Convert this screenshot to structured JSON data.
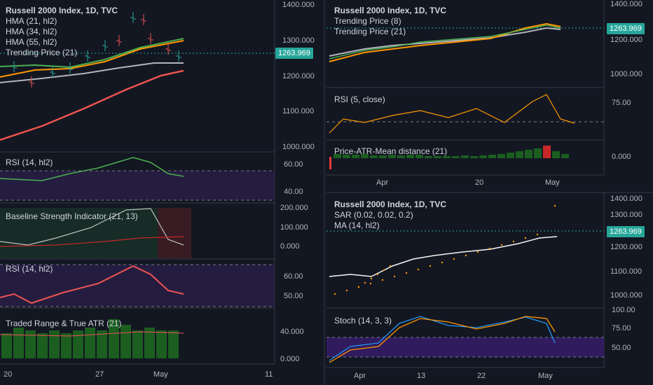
{
  "colors": {
    "bg": "#131722",
    "grid": "#2a2e39",
    "up": "#26a69a",
    "down": "#ef5350",
    "accent": "#26a69a",
    "purple": "#2a1f49"
  },
  "left": {
    "main": {
      "title": "Russell 2000 Index, 1D, TVC",
      "legend": [
        "HMA (21, hl2)",
        "HMA (34, hl2)",
        "HMA (55, hl2)",
        "Trending Price (21)"
      ],
      "ticks": [
        "1400.000",
        "1300.000",
        "1200.000",
        "1100.000",
        "1000.000"
      ],
      "last_price": "1263.969"
    },
    "rsi1": {
      "label": "RSI (14, hl2)",
      "ticks": [
        "60.00",
        "40.00"
      ]
    },
    "baseline": {
      "label": "Baseline Strength Indicator (21, 13)",
      "ticks": [
        "200.000",
        "100.000",
        "0.000"
      ]
    },
    "rsi2": {
      "label": "RSI (14, hl2)",
      "ticks": [
        "60.00",
        "50.00"
      ]
    },
    "atr": {
      "label": "Traded Range & True ATR (21)",
      "ticks": [
        "40.000",
        "0.000"
      ]
    },
    "xaxis": [
      "20",
      "27",
      "May",
      "11"
    ]
  },
  "right_top": {
    "main": {
      "title": "Russell 2000 Index, 1D, TVC",
      "legend": [
        "Trending Price (8)",
        "Trending Price (21)"
      ],
      "ticks": [
        "1400.000",
        "1200.000",
        "1000.000"
      ],
      "last_price": "1263.969"
    },
    "rsi": {
      "label": "RSI (5, close)",
      "ticks": [
        "75.00"
      ]
    },
    "dist": {
      "label": "Price-ATR-Mean distance (21)",
      "ticks": [
        "0.000"
      ]
    },
    "xaxis": [
      "Apr",
      "20",
      "May"
    ]
  },
  "right_bottom": {
    "main": {
      "title": "Russell 2000 Index, 1D, TVC",
      "legend": [
        "SAR (0.02, 0.02, 0.2)",
        "MA (14, hl2)"
      ],
      "ticks": [
        "1400.000",
        "1300.000",
        "1200.000",
        "1100.000",
        "1000.000"
      ],
      "last_price": "1263.969"
    },
    "stoch": {
      "label": "Stoch (14, 3, 3)",
      "ticks": [
        "100.00",
        "75.00",
        "50.00"
      ]
    },
    "xaxis": [
      "Apr",
      "13",
      "22",
      "May"
    ]
  }
}
